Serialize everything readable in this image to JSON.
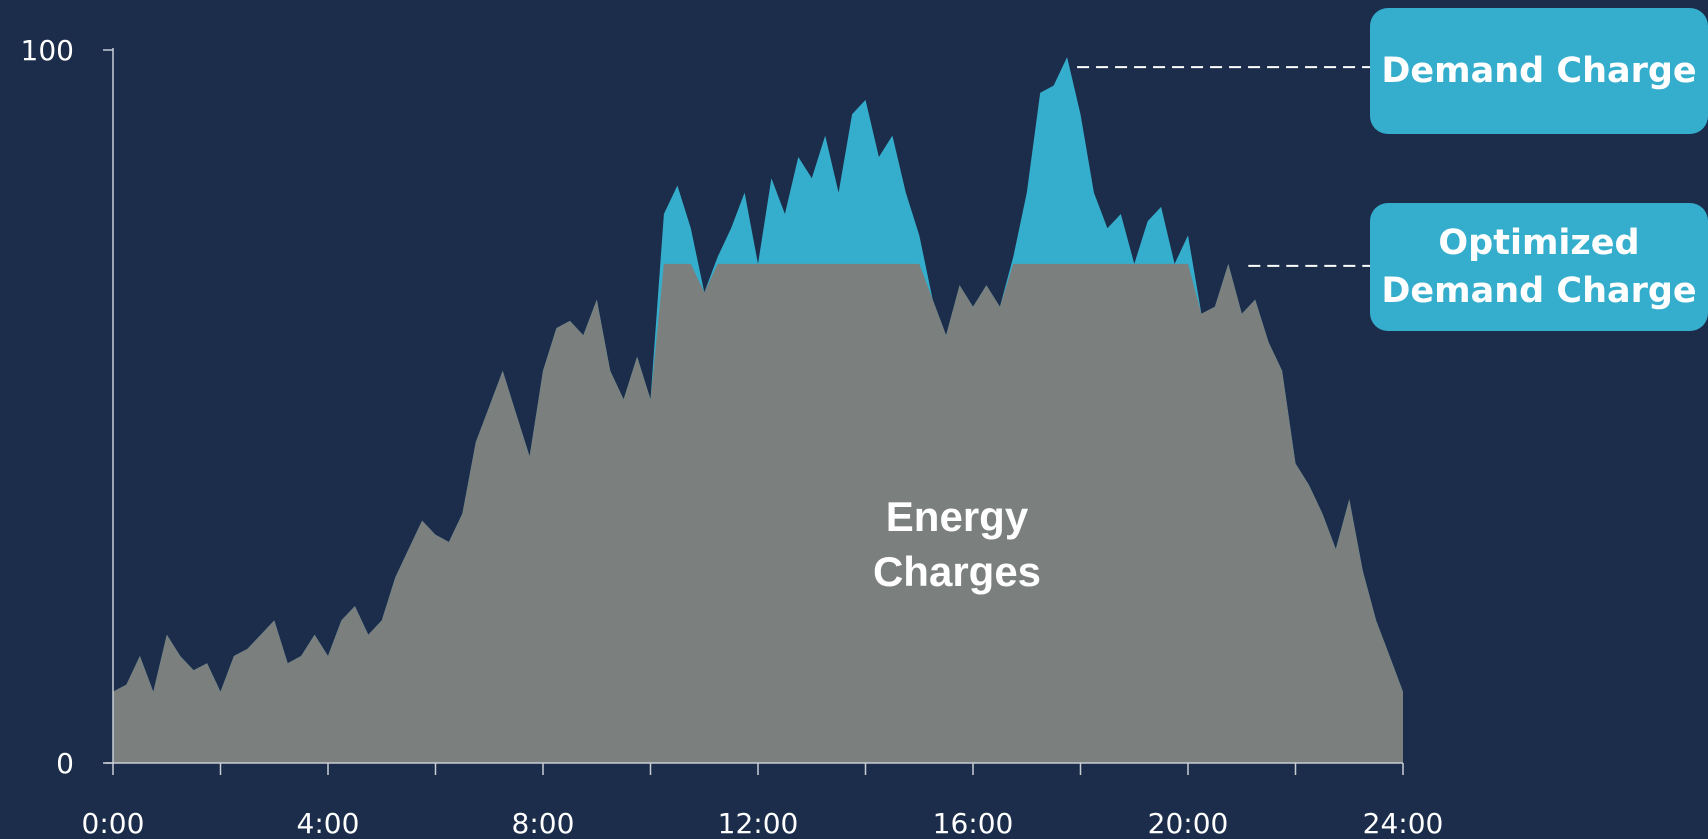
{
  "chart_data": {
    "type": "area",
    "x_tick_labels": [
      "0:00",
      "4:00",
      "8:00",
      "12:00",
      "16:00",
      "20:00",
      "24:00"
    ],
    "y_tick_labels": [
      "0",
      "100"
    ],
    "xlim": [
      0,
      24
    ],
    "ylim": [
      0,
      100
    ],
    "cap_value": 70,
    "area_label": [
      "Energy",
      "Charges"
    ],
    "callouts": {
      "demand": "Demand Charge",
      "optimized": [
        "Optimized",
        "Demand Charge"
      ]
    },
    "colors": {
      "background": "#1b2d4a",
      "energy_area": "#7b7f7e",
      "peak_area": "#35aecd",
      "callout": "#35aecd"
    },
    "series": [
      {
        "x": [
          0.0,
          0.25,
          0.5,
          0.75,
          1.0,
          1.25,
          1.5,
          1.75,
          2.0,
          2.25,
          2.5,
          2.75,
          3.0,
          3.25,
          3.5,
          3.75,
          4.0,
          4.25,
          4.5,
          4.75,
          5.0,
          5.25,
          5.5,
          5.75,
          6.0,
          6.25,
          6.5,
          6.75,
          7.0,
          7.25,
          7.5,
          7.75,
          8.0,
          8.25,
          8.5,
          8.75,
          9.0,
          9.25,
          9.5,
          9.75,
          10.0,
          10.25,
          10.5,
          10.75,
          11.0,
          11.25,
          11.5,
          11.75,
          12.0,
          12.25,
          12.5,
          12.75,
          13.0,
          13.25,
          13.5,
          13.75,
          14.0,
          14.25,
          14.5,
          14.75,
          15.0,
          15.25,
          15.5,
          15.75,
          16.0,
          16.25,
          16.5,
          16.75,
          17.0,
          17.25,
          17.5,
          17.75,
          18.0,
          18.25,
          18.5,
          18.75,
          19.0,
          19.25,
          19.5,
          19.75,
          20.0,
          20.25,
          20.5,
          20.75,
          21.0,
          21.25,
          21.5,
          21.75,
          22.0,
          22.25,
          22.5,
          22.75,
          23.0,
          23.25,
          23.5,
          23.75,
          24.0
        ],
        "values": [
          10,
          11,
          15,
          10,
          18,
          15,
          13,
          14,
          10,
          15,
          16,
          18,
          20,
          14,
          15,
          18,
          15,
          20,
          22,
          18,
          20,
          26,
          30,
          34,
          32,
          31,
          35,
          45,
          50,
          55,
          49,
          43,
          55,
          61,
          62,
          60,
          65,
          55,
          51,
          57,
          51,
          77,
          81,
          75,
          66,
          71,
          75,
          80,
          70,
          82,
          77,
          85,
          82,
          88,
          80,
          91,
          93,
          85,
          88,
          80,
          74,
          65,
          60,
          67,
          64,
          67,
          64,
          71,
          80,
          94,
          95,
          99,
          91,
          80,
          75,
          77,
          70,
          76,
          78,
          70,
          74,
          63,
          64,
          70,
          63,
          65,
          59,
          55,
          42,
          39,
          35,
          30,
          37,
          27,
          20,
          15,
          10
        ]
      }
    ]
  }
}
